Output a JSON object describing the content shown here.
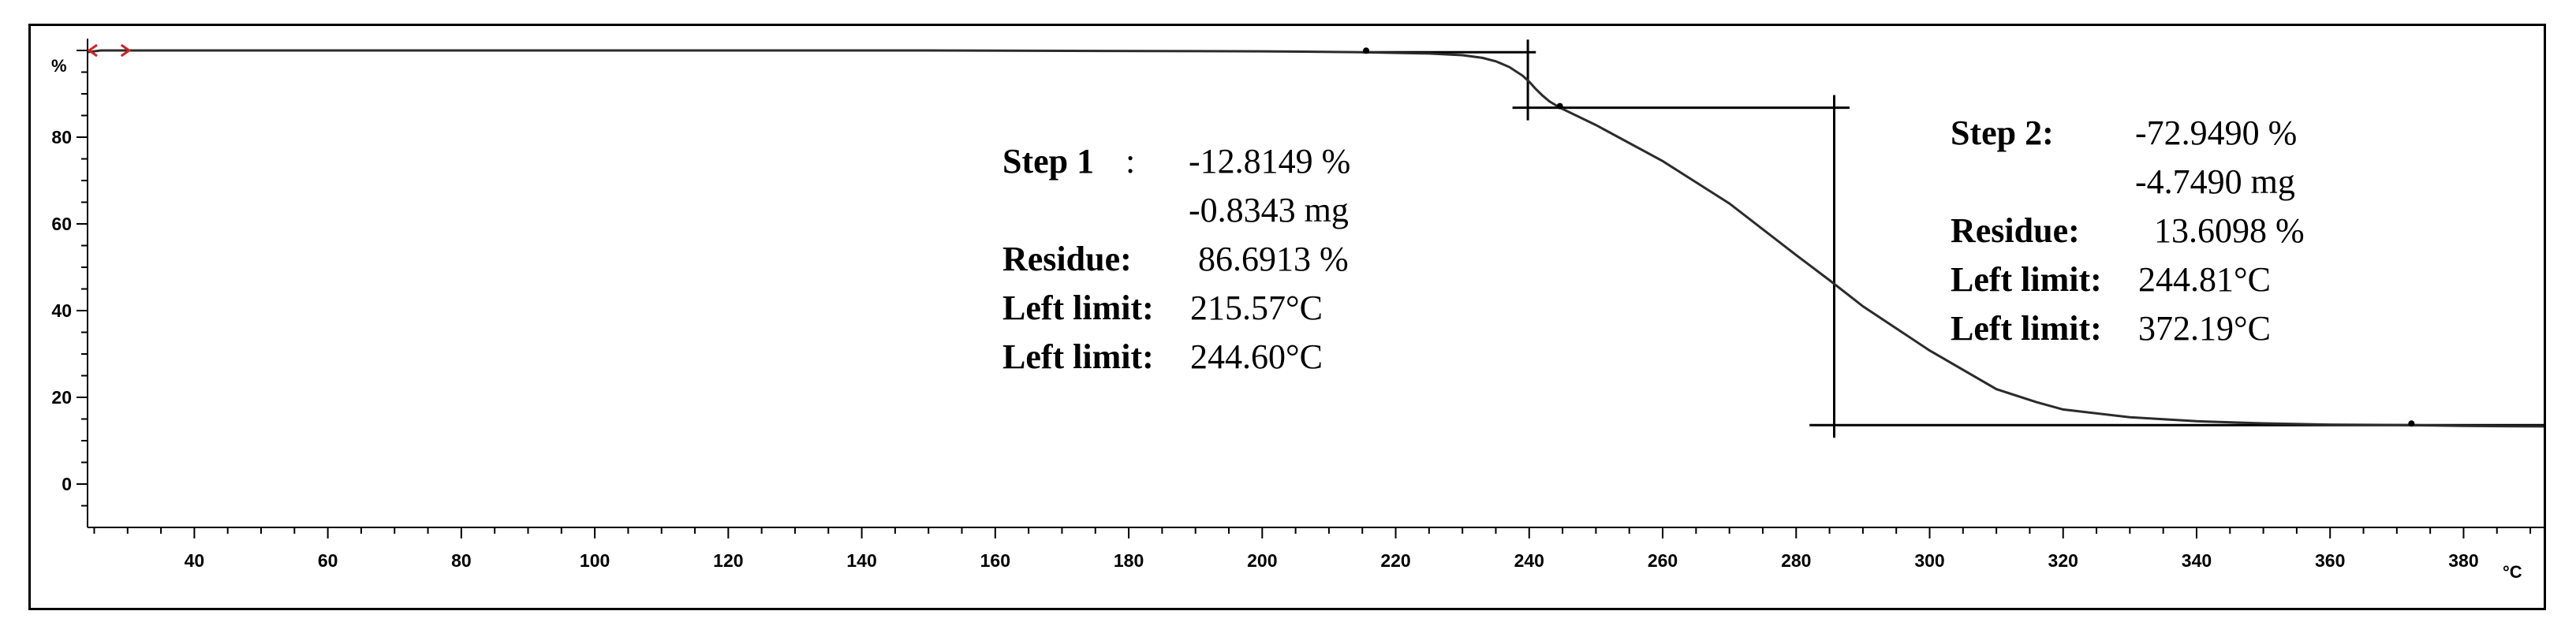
{
  "chart_data": {
    "type": "line",
    "title": "",
    "xlabel": "°C",
    "ylabel": "%",
    "xlim": [
      24,
      392
    ],
    "ylim": [
      -10,
      102
    ],
    "x_ticks": [
      40,
      60,
      80,
      100,
      120,
      140,
      160,
      180,
      200,
      220,
      240,
      260,
      280,
      300,
      320,
      340,
      360,
      380
    ],
    "y_ticks": [
      0,
      20,
      40,
      60,
      80
    ],
    "grid": false,
    "legend": "none",
    "colors": {
      "line": "#2b2b2b",
      "limit_marker": "#d62020"
    },
    "series": [
      {
        "x": [
          24,
          26,
          50,
          100,
          150,
          200,
          215,
          225,
          230,
          233,
          235,
          237,
          239,
          240,
          241,
          242,
          243,
          244.6,
          250,
          260,
          270,
          280,
          285,
          290,
          300,
          310,
          316,
          320,
          330,
          340,
          350,
          360,
          372,
          380,
          392
        ],
        "y": [
          99.6,
          100,
          100,
          100,
          100,
          99.8,
          99.6,
          99.3,
          98.9,
          98.3,
          97.5,
          96.2,
          94.2,
          92.8,
          91.1,
          89.6,
          88.3,
          86.8,
          82.8,
          74.5,
          64.7,
          52.8,
          47.0,
          41.0,
          30.8,
          21.9,
          18.9,
          17.2,
          15.4,
          14.5,
          14.0,
          13.7,
          13.6,
          13.4,
          13.3
        ]
      }
    ],
    "steps": [
      {
        "step_label": "Step 1",
        "step_value": "-12.8149 %",
        "mass_value": "-0.8343 mg",
        "residue_label": "Residue:",
        "residue_value": "86.6913 %",
        "limit1_label": "Left limit:",
        "limit1_value": "215.57°C",
        "limit2_label": "Left limit:",
        "limit2_value": "244.60°C",
        "upper_level": 99.6,
        "lower_level": 86.8,
        "vertical_x": 239.8,
        "hline_upper_x": [
          215,
          241
        ],
        "hline_lower_x": [
          237.5,
          288
        ],
        "markers": [
          [
            215.57,
            99.6
          ],
          [
            244.6,
            86.8
          ]
        ]
      },
      {
        "step_label": "Step 2:",
        "step_value": "-72.9490 %",
        "mass_value": "-4.7490 mg",
        "residue_label": "Residue:",
        "residue_value": "13.6098 %",
        "limit1_label": "Left limit:",
        "limit1_value": "244.81°C",
        "limit2_label": "Left limit:",
        "limit2_value": "372.19°C",
        "upper_level": 86.8,
        "lower_level": 13.6,
        "vertical_x": 285.7,
        "hline_lower_x": [
          282,
          392
        ],
        "markers": [
          [
            372.19,
            13.6
          ]
        ]
      }
    ],
    "limit_marker_x": 30
  }
}
